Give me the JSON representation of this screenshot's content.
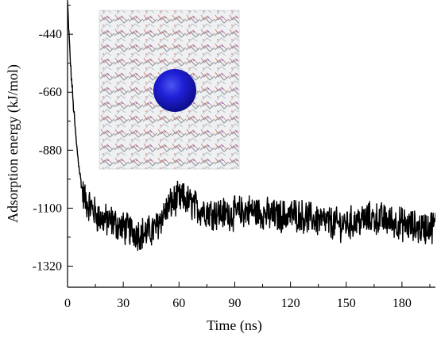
{
  "chart_data": {
    "type": "line",
    "title": "",
    "xlabel": "Time (ns)",
    "ylabel": "Adsorption energy (kJ/mol)",
    "xlim": [
      0,
      198
    ],
    "ylim": [
      -1400,
      -310
    ],
    "xticks": [
      0,
      30,
      60,
      90,
      120,
      150,
      180
    ],
    "yticks": [
      -440,
      -660,
      -880,
      -1100,
      -1320
    ],
    "grid": false,
    "legend": "none",
    "series": [
      {
        "name": "",
        "x": [
          0,
          0.5,
          1,
          1.5,
          2,
          2.5,
          3,
          3.5,
          4,
          4.5,
          5,
          5.5,
          6,
          6.5,
          7,
          7.5,
          8,
          9,
          10,
          11,
          12,
          13,
          14,
          15,
          16,
          18,
          20,
          22,
          24,
          26,
          28,
          30,
          32,
          34,
          36,
          38,
          40,
          42,
          44,
          46,
          48,
          50,
          52,
          54,
          56,
          58,
          60,
          62,
          64,
          66,
          68,
          70,
          72,
          75,
          78,
          81,
          84,
          87,
          90,
          93,
          96,
          99,
          102,
          105,
          108,
          111,
          114,
          117,
          120,
          123,
          126,
          129,
          132,
          135,
          138,
          141,
          144,
          147,
          150,
          153,
          156,
          159,
          162,
          165,
          168,
          171,
          174,
          177,
          180,
          183,
          186,
          189,
          192,
          195,
          198
        ],
        "y": [
          -320,
          -400,
          -470,
          -540,
          -600,
          -640,
          -700,
          -740,
          -790,
          -830,
          -870,
          -900,
          -930,
          -960,
          -990,
          -1010,
          -1040,
          -1060,
          -1075,
          -1085,
          -1090,
          -1100,
          -1110,
          -1120,
          -1130,
          -1140,
          -1145,
          -1150,
          -1150,
          -1160,
          -1170,
          -1175,
          -1180,
          -1185,
          -1190,
          -1195,
          -1195,
          -1195,
          -1190,
          -1185,
          -1170,
          -1140,
          -1120,
          -1100,
          -1080,
          -1070,
          -1065,
          -1065,
          -1070,
          -1080,
          -1090,
          -1100,
          -1105,
          -1110,
          -1115,
          -1120,
          -1120,
          -1120,
          -1120,
          -1115,
          -1110,
          -1110,
          -1115,
          -1120,
          -1125,
          -1130,
          -1130,
          -1130,
          -1125,
          -1125,
          -1130,
          -1135,
          -1140,
          -1145,
          -1150,
          -1155,
          -1160,
          -1160,
          -1160,
          -1155,
          -1150,
          -1145,
          -1140,
          -1140,
          -1140,
          -1145,
          -1150,
          -1155,
          -1160,
          -1165,
          -1170,
          -1175,
          -1175,
          -1170,
          -1165
        ]
      }
    ]
  },
  "inset": {
    "description_colors": {
      "background": "#f3f3f3",
      "particle": "#1e1ec8",
      "mesh": "#b0b4b8"
    }
  }
}
